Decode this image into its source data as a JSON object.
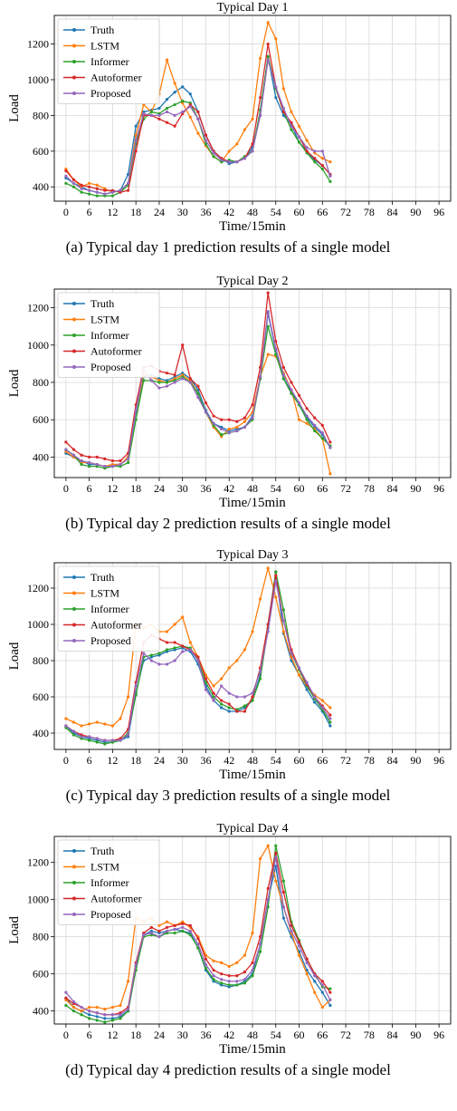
{
  "legend_labels": [
    "Truth",
    "LSTM",
    "Informer",
    "Autoformer",
    "Proposed"
  ],
  "chart_data": [
    {
      "type": "line",
      "title": "Typical Day 1",
      "xlabel": "Time/15min",
      "ylabel": "Load",
      "caption": "(a) Typical day 1 prediction results of a single model",
      "xlim": [
        -3,
        99
      ],
      "ylim": [
        320,
        1360
      ],
      "xticks": [
        0,
        6,
        12,
        18,
        24,
        30,
        36,
        42,
        48,
        54,
        60,
        66,
        72,
        78,
        84,
        90,
        96
      ],
      "yticks": [
        400,
        600,
        800,
        1000,
        1200
      ],
      "grid": true,
      "legend_position": "top-left",
      "x_step": 2,
      "series": [
        {
          "name": "Truth",
          "color": "#1f77b4",
          "values": [
            450,
            420,
            400,
            380,
            370,
            360,
            370,
            380,
            470,
            740,
            820,
            830,
            840,
            890,
            930,
            960,
            920,
            820,
            690,
            600,
            560,
            530,
            540,
            560,
            620,
            800,
            1130,
            900,
            800,
            750,
            650,
            600,
            550,
            520,
            470
          ]
        },
        {
          "name": "LSTM",
          "color": "#ff7f0e",
          "values": [
            500,
            440,
            400,
            420,
            410,
            390,
            370,
            380,
            420,
            690,
            860,
            820,
            920,
            1110,
            980,
            870,
            790,
            700,
            630,
            570,
            540,
            600,
            640,
            720,
            780,
            1120,
            1320,
            1230,
            950,
            820,
            740,
            660,
            590,
            560,
            540
          ]
        },
        {
          "name": "Informer",
          "color": "#2ca02c",
          "values": [
            420,
            400,
            370,
            360,
            350,
            350,
            350,
            370,
            410,
            640,
            780,
            820,
            810,
            840,
            860,
            880,
            870,
            780,
            640,
            570,
            540,
            550,
            540,
            570,
            600,
            830,
            1130,
            950,
            820,
            720,
            650,
            590,
            540,
            500,
            430
          ]
        },
        {
          "name": "Autoformer",
          "color": "#d62728",
          "values": [
            490,
            440,
            410,
            400,
            390,
            380,
            380,
            370,
            380,
            600,
            800,
            800,
            780,
            760,
            740,
            810,
            860,
            820,
            690,
            600,
            560,
            540,
            540,
            560,
            640,
            900,
            1200,
            960,
            820,
            760,
            680,
            600,
            560,
            520,
            470
          ]
        },
        {
          "name": "Proposed",
          "color": "#9467bd",
          "values": [
            460,
            420,
            390,
            380,
            370,
            360,
            370,
            380,
            420,
            660,
            810,
            800,
            800,
            820,
            800,
            820,
            850,
            780,
            660,
            590,
            550,
            540,
            540,
            560,
            600,
            800,
            1110,
            960,
            840,
            740,
            680,
            620,
            600,
            600,
            460
          ]
        }
      ]
    },
    {
      "type": "line",
      "title": "Typical Day 2",
      "xlabel": "Time/15min",
      "ylabel": "Load",
      "caption": "(b) Typical day 2 prediction results of a single model",
      "xlim": [
        -3,
        99
      ],
      "ylim": [
        290,
        1300
      ],
      "xticks": [
        0,
        6,
        12,
        18,
        24,
        30,
        36,
        42,
        48,
        54,
        60,
        66,
        72,
        78,
        84,
        90,
        96
      ],
      "yticks": [
        400,
        600,
        800,
        1000,
        1200
      ],
      "grid": true,
      "legend_position": "top-left",
      "x_step": 2,
      "series": [
        {
          "name": "Truth",
          "color": "#1f77b4",
          "values": [
            420,
            400,
            380,
            360,
            360,
            350,
            360,
            360,
            400,
            640,
            830,
            840,
            820,
            810,
            830,
            850,
            820,
            760,
            650,
            580,
            560,
            540,
            550,
            560,
            620,
            820,
            1170,
            970,
            820,
            750,
            680,
            610,
            560,
            520,
            450
          ]
        },
        {
          "name": "LSTM",
          "color": "#ff7f0e",
          "values": [
            430,
            400,
            370,
            370,
            360,
            350,
            360,
            360,
            400,
            650,
            840,
            830,
            810,
            800,
            820,
            840,
            810,
            740,
            640,
            560,
            510,
            550,
            560,
            590,
            640,
            830,
            950,
            940,
            850,
            760,
            600,
            580,
            550,
            500,
            310
          ]
        },
        {
          "name": "Informer",
          "color": "#2ca02c",
          "values": [
            440,
            410,
            360,
            350,
            350,
            340,
            350,
            350,
            370,
            600,
            810,
            810,
            800,
            800,
            810,
            830,
            800,
            740,
            640,
            570,
            520,
            530,
            540,
            560,
            600,
            820,
            1100,
            950,
            820,
            740,
            680,
            600,
            540,
            500,
            460
          ]
        },
        {
          "name": "Autoformer",
          "color": "#d62728",
          "values": [
            480,
            440,
            410,
            400,
            400,
            390,
            380,
            380,
            420,
            680,
            880,
            890,
            860,
            850,
            840,
            1000,
            820,
            780,
            690,
            620,
            600,
            600,
            590,
            610,
            680,
            880,
            1280,
            1020,
            880,
            800,
            730,
            660,
            610,
            570,
            480
          ]
        },
        {
          "name": "Proposed",
          "color": "#9467bd",
          "values": [
            440,
            410,
            380,
            370,
            360,
            350,
            350,
            360,
            390,
            650,
            870,
            810,
            770,
            780,
            800,
            820,
            800,
            720,
            640,
            580,
            550,
            530,
            540,
            560,
            610,
            830,
            1180,
            980,
            840,
            760,
            690,
            620,
            570,
            530,
            450
          ]
        }
      ]
    },
    {
      "type": "line",
      "title": "Typical Day 3",
      "xlabel": "Time/15min",
      "ylabel": "Load",
      "caption": "(c) Typical day 3 prediction results of a single model",
      "xlim": [
        -3,
        99
      ],
      "ylim": [
        310,
        1340
      ],
      "xticks": [
        0,
        6,
        12,
        18,
        24,
        30,
        36,
        42,
        48,
        54,
        60,
        66,
        72,
        78,
        84,
        90,
        96
      ],
      "yticks": [
        400,
        600,
        800,
        1000,
        1200
      ],
      "grid": true,
      "legend_position": "top-left",
      "x_step": 2,
      "series": [
        {
          "name": "Truth",
          "color": "#1f77b4",
          "values": [
            440,
            400,
            380,
            370,
            360,
            350,
            350,
            360,
            380,
            620,
            800,
            820,
            830,
            850,
            860,
            870,
            850,
            780,
            660,
            580,
            540,
            520,
            520,
            540,
            580,
            720,
            1000,
            1290,
            950,
            800,
            720,
            640,
            570,
            520,
            440
          ]
        },
        {
          "name": "LSTM",
          "color": "#ff7f0e",
          "values": [
            480,
            460,
            440,
            450,
            460,
            450,
            440,
            480,
            600,
            1000,
            980,
            1000,
            960,
            960,
            1000,
            1040,
            900,
            820,
            720,
            660,
            700,
            760,
            800,
            860,
            960,
            1140,
            1310,
            1150,
            960,
            820,
            720,
            660,
            610,
            580,
            540
          ]
        },
        {
          "name": "Informer",
          "color": "#2ca02c",
          "values": [
            430,
            390,
            370,
            360,
            350,
            340,
            350,
            360,
            400,
            610,
            820,
            830,
            840,
            860,
            870,
            880,
            870,
            800,
            680,
            600,
            560,
            540,
            530,
            550,
            580,
            700,
            980,
            1290,
            1080,
            840,
            750,
            660,
            590,
            530,
            460
          ]
        },
        {
          "name": "Autoformer",
          "color": "#d62728",
          "values": [
            440,
            410,
            390,
            380,
            370,
            360,
            360,
            370,
            420,
            680,
            900,
            940,
            920,
            900,
            900,
            880,
            860,
            820,
            700,
            620,
            580,
            560,
            520,
            520,
            600,
            760,
            1000,
            1270,
            1020,
            860,
            760,
            670,
            600,
            550,
            500
          ]
        },
        {
          "name": "Proposed",
          "color": "#9467bd",
          "values": [
            440,
            410,
            380,
            380,
            370,
            360,
            360,
            360,
            390,
            660,
            840,
            800,
            780,
            780,
            800,
            850,
            860,
            800,
            640,
            580,
            660,
            620,
            600,
            600,
            620,
            740,
            960,
            1240,
            1020,
            840,
            760,
            680,
            600,
            540,
            480
          ]
        }
      ]
    },
    {
      "type": "line",
      "title": "Typical Day 4",
      "xlabel": "Time/15min",
      "ylabel": "Load",
      "caption": "(d) Typical day 4 prediction results of a single model",
      "xlim": [
        -3,
        99
      ],
      "ylim": [
        330,
        1340
      ],
      "xticks": [
        0,
        6,
        12,
        18,
        24,
        30,
        36,
        42,
        48,
        54,
        60,
        66,
        72,
        78,
        84,
        90,
        96
      ],
      "yticks": [
        400,
        600,
        800,
        1000,
        1200
      ],
      "grid": true,
      "legend_position": "top-left",
      "x_step": 2,
      "series": [
        {
          "name": "Truth",
          "color": "#1f77b4",
          "values": [
            470,
            420,
            400,
            380,
            370,
            360,
            360,
            370,
            400,
            640,
            810,
            830,
            820,
            830,
            840,
            830,
            820,
            740,
            620,
            560,
            540,
            530,
            540,
            560,
            600,
            760,
            1000,
            1180,
            900,
            800,
            720,
            620,
            560,
            500,
            430
          ]
        },
        {
          "name": "LSTM",
          "color": "#ff7f0e",
          "values": [
            460,
            420,
            400,
            420,
            420,
            410,
            420,
            430,
            560,
            900,
            880,
            900,
            860,
            880,
            860,
            880,
            850,
            800,
            700,
            670,
            660,
            640,
            660,
            700,
            820,
            1220,
            1290,
            1100,
            960,
            820,
            700,
            600,
            500,
            420,
            460
          ]
        },
        {
          "name": "Informer",
          "color": "#2ca02c",
          "values": [
            430,
            400,
            380,
            360,
            350,
            340,
            350,
            360,
            400,
            620,
            800,
            810,
            800,
            820,
            820,
            830,
            810,
            740,
            630,
            570,
            550,
            540,
            540,
            550,
            590,
            720,
            960,
            1290,
            1100,
            880,
            780,
            680,
            600,
            530,
            520
          ]
        },
        {
          "name": "Autoformer",
          "color": "#d62728",
          "values": [
            470,
            440,
            420,
            400,
            390,
            380,
            380,
            390,
            420,
            660,
            820,
            850,
            830,
            850,
            860,
            870,
            860,
            790,
            680,
            620,
            600,
            590,
            590,
            610,
            660,
            800,
            1060,
            1250,
            1040,
            860,
            770,
            680,
            600,
            560,
            500
          ]
        },
        {
          "name": "Proposed",
          "color": "#9467bd",
          "values": [
            500,
            450,
            420,
            400,
            390,
            380,
            380,
            380,
            410,
            650,
            810,
            820,
            800,
            830,
            840,
            850,
            830,
            760,
            650,
            590,
            570,
            560,
            560,
            570,
            620,
            760,
            1000,
            1230,
            960,
            830,
            750,
            660,
            590,
            540,
            460
          ]
        }
      ]
    }
  ]
}
